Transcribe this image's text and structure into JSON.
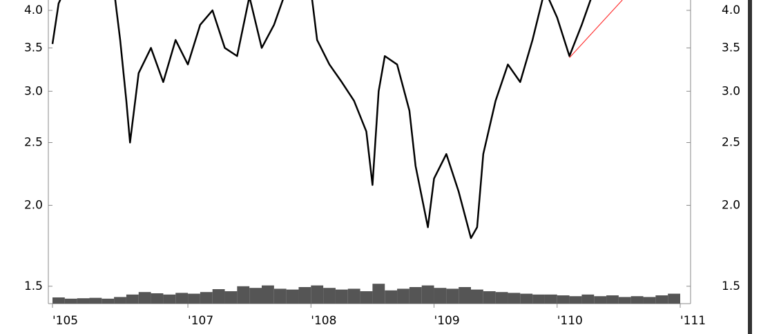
{
  "chart_data": {
    "type": "line",
    "y_scale": "log",
    "xlim": [
      105.9,
      111
    ],
    "xticks": [
      {
        "value": 105.9,
        "label": "'105"
      },
      {
        "value": 107,
        "label": "'107"
      },
      {
        "value": 108,
        "label": "'108"
      },
      {
        "value": 109,
        "label": "'109"
      },
      {
        "value": 110,
        "label": "'110"
      },
      {
        "value": 111,
        "label": "'111"
      }
    ],
    "ylim": [
      1.41,
      4.15
    ],
    "yticks": [
      {
        "value": 1.5,
        "label": "1.5"
      },
      {
        "value": 2.0,
        "label": "2.0"
      },
      {
        "value": 2.5,
        "label": "2.5"
      },
      {
        "value": 3.0,
        "label": "3.0"
      },
      {
        "value": 3.5,
        "label": "3.5"
      },
      {
        "value": 4.0,
        "label": "4.0"
      }
    ],
    "series": [
      {
        "color": "#000000",
        "x": [
          105.9,
          105.95,
          106.0,
          106.4,
          106.45,
          106.5,
          106.53,
          106.6,
          106.7,
          106.8,
          106.9,
          107.0,
          107.1,
          107.2,
          107.3,
          107.4,
          107.5,
          107.6,
          107.7,
          107.8,
          108.0,
          108.05,
          108.15,
          108.25,
          108.35,
          108.45,
          108.5,
          108.55,
          108.6,
          108.7,
          108.8,
          108.85,
          108.95,
          109.0,
          109.1,
          109.2,
          109.3,
          109.35,
          109.4,
          109.5,
          109.6,
          109.7,
          109.8,
          109.9,
          110.0,
          110.1,
          110.2,
          110.3
        ],
        "values": [
          3.55,
          4.1,
          4.3,
          4.3,
          3.6,
          2.9,
          2.5,
          3.2,
          3.5,
          3.1,
          3.6,
          3.3,
          3.8,
          4.0,
          3.5,
          3.4,
          4.2,
          3.5,
          3.8,
          4.3,
          4.3,
          3.6,
          3.3,
          3.1,
          2.9,
          2.6,
          2.15,
          3.0,
          3.4,
          3.3,
          2.8,
          2.3,
          1.85,
          2.2,
          2.4,
          2.1,
          1.78,
          1.85,
          2.4,
          2.9,
          3.3,
          3.1,
          3.6,
          4.3,
          3.9,
          3.4,
          3.8,
          4.3
        ]
      },
      {
        "color": "#ff3333",
        "x": [
          110.1,
          110.53
        ],
        "values": [
          3.38,
          4.15
        ]
      }
    ],
    "volume": {
      "color": "#555555",
      "lim": [
        0,
        100
      ],
      "x": [
        105.9,
        106.0,
        106.1,
        106.2,
        106.3,
        106.4,
        106.5,
        106.6,
        106.7,
        106.8,
        106.9,
        107.0,
        107.1,
        107.2,
        107.3,
        107.4,
        107.5,
        107.6,
        107.7,
        107.8,
        107.9,
        108.0,
        108.1,
        108.2,
        108.3,
        108.4,
        108.5,
        108.6,
        108.7,
        108.8,
        108.9,
        109.0,
        109.1,
        109.2,
        109.3,
        109.4,
        109.5,
        109.6,
        109.7,
        109.8,
        109.9,
        110.0,
        110.1,
        110.2,
        110.3,
        110.4,
        110.5,
        110.6,
        110.7,
        110.8,
        110.9
      ],
      "values": [
        15,
        12,
        13,
        14,
        12,
        16,
        22,
        28,
        25,
        22,
        26,
        24,
        28,
        35,
        30,
        42,
        38,
        44,
        36,
        34,
        40,
        44,
        38,
        34,
        36,
        30,
        48,
        32,
        36,
        40,
        44,
        38,
        36,
        40,
        34,
        30,
        28,
        26,
        24,
        22,
        22,
        20,
        18,
        22,
        18,
        20,
        16,
        18,
        16,
        20,
        24
      ]
    }
  }
}
